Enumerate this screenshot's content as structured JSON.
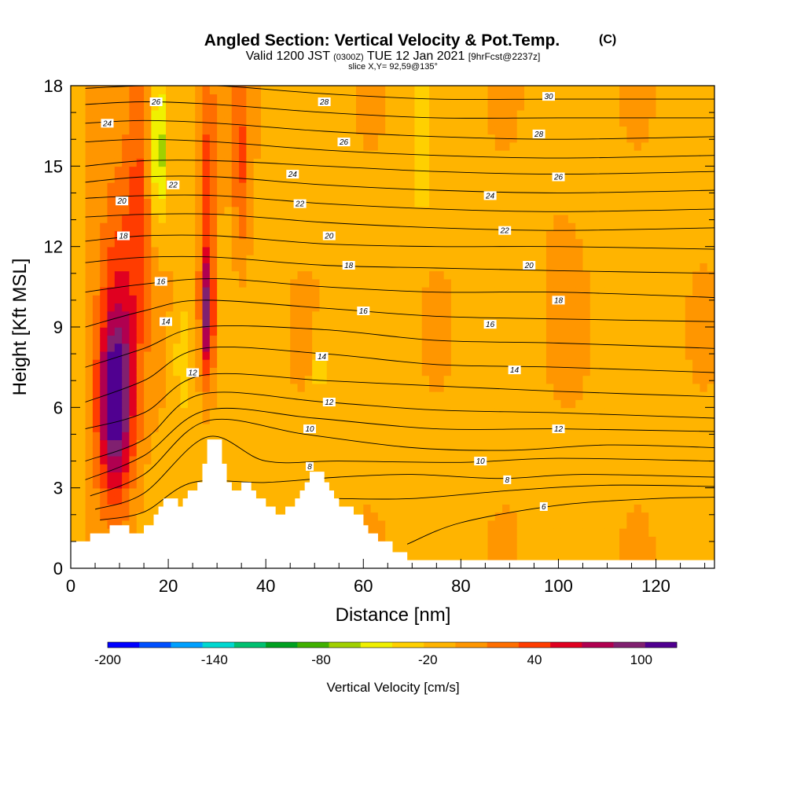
{
  "chart_data": {
    "type": "heatmap",
    "title": "Angled Section: Vertical Velocity & Pot.Temp.",
    "title_mark": "(C)",
    "subtitle_parts": [
      "Valid 1200 JST",
      "(0300Z)",
      "TUE 12 Jan 2021",
      "[9hrFcst@2237z]"
    ],
    "subtitle2": "slice X,Y= 92,59@135°",
    "xlabel": "Distance [nm]",
    "ylabel": "Height [Kft MSL]",
    "xlim": [
      0,
      132
    ],
    "ylim": [
      0,
      18
    ],
    "x_ticks": [
      "0",
      "20",
      "40",
      "60",
      "80",
      "100",
      "120"
    ],
    "x_tick_values": [
      0,
      20,
      40,
      60,
      80,
      100,
      120
    ],
    "y_ticks": [
      "0",
      "3",
      "6",
      "9",
      "12",
      "15",
      "18"
    ],
    "y_tick_values": [
      0,
      3,
      6,
      9,
      12,
      15,
      18
    ],
    "colorbar": {
      "label": "Vertical Velocity [cm/s]",
      "tick_labels": [
        "-200",
        "-140",
        "-80",
        "-20",
        "40",
        "100"
      ],
      "tick_values": [
        -200,
        -140,
        -80,
        -20,
        40,
        100
      ],
      "range": [
        -200,
        120
      ],
      "colors": [
        "#0000ff",
        "#0050ff",
        "#00a0ff",
        "#00d8d0",
        "#00c070",
        "#00a020",
        "#40b000",
        "#a0d000",
        "#f0f000",
        "#ffd000",
        "#ffb400",
        "#ff9600",
        "#ff6e00",
        "#ff3c00",
        "#e00020",
        "#b00050",
        "#802070",
        "#500090"
      ]
    },
    "background_value": -10,
    "updrafts": [
      {
        "x": 9,
        "y": 6.0,
        "peak": 110,
        "wx": 3.5,
        "wy": 3.2
      },
      {
        "x": 10,
        "y": 9.5,
        "peak": 60,
        "wx": 5,
        "wy": 5
      },
      {
        "x": 14,
        "y": 15,
        "peak": 35,
        "wx": 2.5,
        "wy": 5
      },
      {
        "x": 28,
        "y": 9.5,
        "peak": 100,
        "wx": 1.4,
        "wy": 2.5
      },
      {
        "x": 28,
        "y": 15,
        "peak": 45,
        "wx": 2,
        "wy": 4
      },
      {
        "x": 35,
        "y": 15,
        "peak": 40,
        "wx": 2,
        "wy": 4
      },
      {
        "x": 100,
        "y": 12,
        "peak": 5,
        "wx": 5,
        "wy": 6
      }
    ],
    "downdrafts": [
      {
        "x": 18,
        "y": 15.5,
        "peak": -60,
        "wx": 1.5,
        "wy": 2.5
      },
      {
        "x": 23,
        "y": 8,
        "peak": -30,
        "wx": 2,
        "wy": 2.5
      },
      {
        "x": 51,
        "y": 7.5,
        "peak": -30,
        "wx": 1.2,
        "wy": 1.2
      },
      {
        "x": 72,
        "y": 15.5,
        "peak": -30,
        "wx": 1.5,
        "wy": 2.5
      }
    ],
    "terrain": [
      [
        0,
        1
      ],
      [
        4,
        1
      ],
      [
        4,
        1.3
      ],
      [
        8,
        1.3
      ],
      [
        8,
        1.6
      ],
      [
        12,
        1.6
      ],
      [
        12,
        1.3
      ],
      [
        15,
        1.3
      ],
      [
        15,
        1.6
      ],
      [
        17,
        1.6
      ],
      [
        17,
        2.0
      ],
      [
        18,
        2.0
      ],
      [
        18,
        2.3
      ],
      [
        19,
        2.3
      ],
      [
        19,
        2.6
      ],
      [
        22,
        2.6
      ],
      [
        22,
        2.3
      ],
      [
        23,
        2.3
      ],
      [
        23,
        2.6
      ],
      [
        24,
        2.6
      ],
      [
        24,
        2.9
      ],
      [
        26,
        2.9
      ],
      [
        26,
        3.2
      ],
      [
        27,
        3.2
      ],
      [
        27,
        3.9
      ],
      [
        28,
        3.9
      ],
      [
        28,
        4.8
      ],
      [
        31,
        4.8
      ],
      [
        31,
        3.9
      ],
      [
        32,
        3.9
      ],
      [
        32,
        3.2
      ],
      [
        33,
        3.2
      ],
      [
        33,
        2.9
      ],
      [
        35,
        2.9
      ],
      [
        35,
        3.2
      ],
      [
        37,
        3.2
      ],
      [
        37,
        2.9
      ],
      [
        38,
        2.9
      ],
      [
        38,
        2.6
      ],
      [
        40,
        2.6
      ],
      [
        40,
        2.3
      ],
      [
        42,
        2.3
      ],
      [
        42,
        2.0
      ],
      [
        44,
        2.0
      ],
      [
        44,
        2.3
      ],
      [
        46,
        2.3
      ],
      [
        46,
        2.6
      ],
      [
        47,
        2.6
      ],
      [
        47,
        2.9
      ],
      [
        48,
        2.9
      ],
      [
        48,
        3.2
      ],
      [
        49,
        3.2
      ],
      [
        49,
        3.6
      ],
      [
        52,
        3.6
      ],
      [
        52,
        3.2
      ],
      [
        53,
        3.2
      ],
      [
        53,
        2.9
      ],
      [
        54,
        2.9
      ],
      [
        54,
        2.6
      ],
      [
        55,
        2.6
      ],
      [
        55,
        2.3
      ],
      [
        58,
        2.3
      ],
      [
        58,
        2.0
      ],
      [
        60,
        2.0
      ],
      [
        60,
        1.6
      ],
      [
        61,
        1.6
      ],
      [
        61,
        1.3
      ],
      [
        63,
        1.3
      ],
      [
        63,
        1.0
      ],
      [
        66,
        1.0
      ],
      [
        66,
        0.6
      ],
      [
        69,
        0.6
      ],
      [
        69,
        0.3
      ],
      [
        132,
        0.3
      ]
    ],
    "theta_contours": [
      {
        "v": 6,
        "pts": [
          [
            69,
            0.9
          ],
          [
            80,
            1.7
          ],
          [
            100,
            2.35
          ],
          [
            120,
            2.6
          ],
          [
            132,
            2.65
          ]
        ]
      },
      {
        "v": 7,
        "pts": [
          [
            55,
            2.6
          ],
          [
            70,
            2.6
          ],
          [
            90,
            2.9
          ],
          [
            110,
            3.1
          ],
          [
            132,
            3.05
          ]
        ]
      },
      {
        "v": 8,
        "pts": [
          [
            6,
            1.8
          ],
          [
            15,
            2.1
          ],
          [
            25,
            3.2
          ],
          [
            40,
            3.2
          ],
          [
            55,
            3.4
          ],
          [
            70,
            3.5
          ],
          [
            88,
            3.35
          ],
          [
            105,
            3.5
          ],
          [
            132,
            3.4
          ]
        ]
      },
      {
        "v": 9,
        "pts": [
          [
            5,
            2.2
          ],
          [
            15,
            2.8
          ],
          [
            28,
            4.9
          ],
          [
            40,
            4.0
          ],
          [
            55,
            4.0
          ],
          [
            80,
            3.95
          ],
          [
            100,
            4.1
          ],
          [
            132,
            4.0
          ]
        ]
      },
      {
        "v": 10,
        "pts": [
          [
            4,
            2.7
          ],
          [
            15,
            3.5
          ],
          [
            28,
            5.5
          ],
          [
            48,
            5.0
          ],
          [
            70,
            4.5
          ],
          [
            90,
            4.4
          ],
          [
            110,
            4.6
          ],
          [
            132,
            4.5
          ]
        ]
      },
      {
        "v": 11,
        "pts": [
          [
            3,
            3.3
          ],
          [
            15,
            4.2
          ],
          [
            28,
            5.9
          ],
          [
            50,
            5.6
          ],
          [
            75,
            5.2
          ],
          [
            100,
            5.2
          ],
          [
            132,
            5.1
          ]
        ]
      },
      {
        "v": 12,
        "pts": [
          [
            3,
            4.0
          ],
          [
            15,
            4.8
          ],
          [
            27,
            6.5
          ],
          [
            52,
            6.2
          ],
          [
            75,
            5.9
          ],
          [
            100,
            5.8
          ],
          [
            132,
            5.6
          ]
        ]
      },
      {
        "v": 13,
        "pts": [
          [
            3,
            5.2
          ],
          [
            15,
            5.8
          ],
          [
            27,
            7.2
          ],
          [
            52,
            7.0
          ],
          [
            75,
            6.8
          ],
          [
            100,
            6.6
          ],
          [
            132,
            6.4
          ]
        ]
      },
      {
        "v": 14,
        "pts": [
          [
            3,
            6.2
          ],
          [
            15,
            7.0
          ],
          [
            27,
            8.2
          ],
          [
            52,
            8.0
          ],
          [
            75,
            7.6
          ],
          [
            100,
            7.5
          ],
          [
            132,
            7.3
          ]
        ]
      },
      {
        "v": 15,
        "pts": [
          [
            3,
            7.5
          ],
          [
            15,
            8.2
          ],
          [
            27,
            9.0
          ],
          [
            52,
            8.9
          ],
          [
            75,
            8.5
          ],
          [
            100,
            8.4
          ],
          [
            132,
            8.2
          ]
        ]
      },
      {
        "v": 16,
        "pts": [
          [
            3,
            9.0
          ],
          [
            15,
            9.6
          ],
          [
            27,
            10.0
          ],
          [
            52,
            9.7
          ],
          [
            75,
            9.4
          ],
          [
            100,
            9.3
          ],
          [
            132,
            9.2
          ]
        ]
      },
      {
        "v": 17,
        "pts": [
          [
            3,
            10.3
          ],
          [
            15,
            10.6
          ],
          [
            30,
            10.8
          ],
          [
            52,
            10.5
          ],
          [
            75,
            10.3
          ],
          [
            100,
            10.3
          ],
          [
            132,
            10.1
          ]
        ]
      },
      {
        "v": 18,
        "pts": [
          [
            3,
            11.4
          ],
          [
            15,
            11.6
          ],
          [
            30,
            11.6
          ],
          [
            52,
            11.3
          ],
          [
            75,
            11.2
          ],
          [
            100,
            11.1
          ],
          [
            132,
            11.0
          ]
        ]
      },
      {
        "v": 19,
        "pts": [
          [
            3,
            12.2
          ],
          [
            15,
            12.4
          ],
          [
            30,
            12.4
          ],
          [
            52,
            12.1
          ],
          [
            75,
            12.0
          ],
          [
            100,
            12.0
          ],
          [
            132,
            11.9
          ]
        ]
      },
      {
        "v": 20,
        "pts": [
          [
            3,
            13.1
          ],
          [
            15,
            13.2
          ],
          [
            30,
            13.2
          ],
          [
            52,
            12.9
          ],
          [
            75,
            12.7
          ],
          [
            100,
            12.6
          ],
          [
            132,
            12.7
          ]
        ]
      },
      {
        "v": 21,
        "pts": [
          [
            3,
            13.8
          ],
          [
            15,
            13.9
          ],
          [
            30,
            13.9
          ],
          [
            52,
            13.6
          ],
          [
            75,
            13.4
          ],
          [
            100,
            13.3
          ],
          [
            132,
            13.4
          ]
        ]
      },
      {
        "v": 22,
        "pts": [
          [
            3,
            14.4
          ],
          [
            15,
            14.6
          ],
          [
            30,
            14.6
          ],
          [
            52,
            14.3
          ],
          [
            75,
            14.1
          ],
          [
            100,
            14.0
          ],
          [
            132,
            14.1
          ]
        ]
      },
      {
        "v": 23,
        "pts": [
          [
            3,
            15.0
          ],
          [
            15,
            15.2
          ],
          [
            30,
            15.2
          ],
          [
            52,
            15.0
          ],
          [
            75,
            14.8
          ],
          [
            100,
            14.7
          ],
          [
            132,
            14.8
          ]
        ]
      },
      {
        "v": 24,
        "pts": [
          [
            3,
            15.9
          ],
          [
            15,
            16.0
          ],
          [
            30,
            15.9
          ],
          [
            52,
            15.6
          ],
          [
            75,
            15.4
          ],
          [
            100,
            15.3
          ],
          [
            132,
            15.4
          ]
        ]
      },
      {
        "v": 25,
        "pts": [
          [
            3,
            16.6
          ],
          [
            15,
            16.7
          ],
          [
            30,
            16.6
          ],
          [
            52,
            16.3
          ],
          [
            75,
            16.1
          ],
          [
            100,
            16.0
          ],
          [
            132,
            16.1
          ]
        ]
      },
      {
        "v": 26,
        "pts": [
          [
            3,
            17.3
          ],
          [
            15,
            17.4
          ],
          [
            30,
            17.3
          ],
          [
            52,
            17.0
          ],
          [
            75,
            16.8
          ],
          [
            100,
            16.8
          ],
          [
            132,
            16.8
          ]
        ]
      },
      {
        "v": 27,
        "pts": [
          [
            3,
            17.9
          ],
          [
            15,
            18.0
          ],
          [
            30,
            18.0
          ],
          [
            52,
            17.7
          ],
          [
            75,
            17.5
          ],
          [
            100,
            17.5
          ],
          [
            132,
            17.5
          ]
        ]
      },
      {
        "v": 28,
        "pts": [
          [
            60,
            18.0
          ],
          [
            75,
            18.0
          ],
          [
            100,
            18.0
          ],
          [
            132,
            18.0
          ]
        ]
      }
    ],
    "contour_labels": [
      {
        "text": "24",
        "x": 7.5,
        "y": 16.6
      },
      {
        "text": "20",
        "x": 10.5,
        "y": 13.7
      },
      {
        "text": "18",
        "x": 10.8,
        "y": 12.4
      },
      {
        "text": "26",
        "x": 17.5,
        "y": 17.4
      },
      {
        "text": "22",
        "x": 21.0,
        "y": 14.3
      },
      {
        "text": "16",
        "x": 18.5,
        "y": 10.7
      },
      {
        "text": "14",
        "x": 19.5,
        "y": 9.2
      },
      {
        "text": "12",
        "x": 25.0,
        "y": 7.3
      },
      {
        "text": "28",
        "x": 52.0,
        "y": 17.4
      },
      {
        "text": "26",
        "x": 56.0,
        "y": 15.9
      },
      {
        "text": "24",
        "x": 45.5,
        "y": 14.7
      },
      {
        "text": "22",
        "x": 47.0,
        "y": 13.6
      },
      {
        "text": "20",
        "x": 53.0,
        "y": 12.4
      },
      {
        "text": "18",
        "x": 57.0,
        "y": 11.3
      },
      {
        "text": "16",
        "x": 60.0,
        "y": 9.6
      },
      {
        "text": "14",
        "x": 51.5,
        "y": 7.9
      },
      {
        "text": "12",
        "x": 53.0,
        "y": 6.2
      },
      {
        "text": "10",
        "x": 49.0,
        "y": 5.2
      },
      {
        "text": "8",
        "x": 49.0,
        "y": 3.8
      },
      {
        "text": "30",
        "x": 98.0,
        "y": 17.6
      },
      {
        "text": "28",
        "x": 96.0,
        "y": 16.2
      },
      {
        "text": "26",
        "x": 100.0,
        "y": 14.6
      },
      {
        "text": "24",
        "x": 86.0,
        "y": 13.9
      },
      {
        "text": "22",
        "x": 89.0,
        "y": 12.6
      },
      {
        "text": "20",
        "x": 94.0,
        "y": 11.3
      },
      {
        "text": "18",
        "x": 100.0,
        "y": 10.0
      },
      {
        "text": "16",
        "x": 86.0,
        "y": 9.1
      },
      {
        "text": "14",
        "x": 91.0,
        "y": 7.4
      },
      {
        "text": "12",
        "x": 100.0,
        "y": 5.2
      },
      {
        "text": "10",
        "x": 84.0,
        "y": 4.0
      },
      {
        "text": "8",
        "x": 89.5,
        "y": 3.3
      },
      {
        "text": "6",
        "x": 97.0,
        "y": 2.3
      }
    ]
  }
}
